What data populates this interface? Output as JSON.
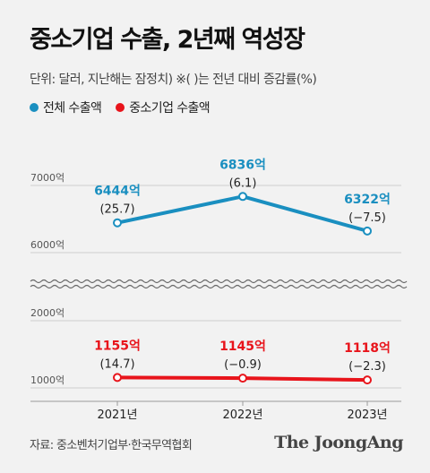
{
  "header": {
    "title": "중소기업 수출, 2년째 역성장",
    "subtitle": "단위: 달러, 지난해는 잠정치) ※( )는 전년 대비 증감률(%)"
  },
  "legend": [
    {
      "label": "전체 수출액",
      "color": "#1a8fc0"
    },
    {
      "label": "중소기업 수출액",
      "color": "#e8141b"
    }
  ],
  "footer": {
    "source": "자료: 중소벤처기업부·한국무역협회",
    "brand": "The JoongAng"
  },
  "chart_data": {
    "type": "line",
    "categories": [
      "2021년",
      "2022년",
      "2023년"
    ],
    "y_ticks": [
      "7000억",
      "6000억",
      "2000억",
      "1000억"
    ],
    "axis_break": true,
    "grid": true,
    "series": [
      {
        "name": "전체 수출액",
        "color": "#1a8fc0",
        "values": [
          6444,
          6836,
          6322
        ],
        "labels": [
          "6444억",
          "6836억",
          "6322억"
        ],
        "changes": [
          "(25.7)",
          "(6.1)",
          "(−7.5)"
        ]
      },
      {
        "name": "중소기업 수출액",
        "color": "#e8141b",
        "values": [
          1155,
          1145,
          1118
        ],
        "labels": [
          "1155억",
          "1145억",
          "1118억"
        ],
        "changes": [
          "(14.7)",
          "(−0.9)",
          "(−2.3)"
        ]
      }
    ]
  }
}
